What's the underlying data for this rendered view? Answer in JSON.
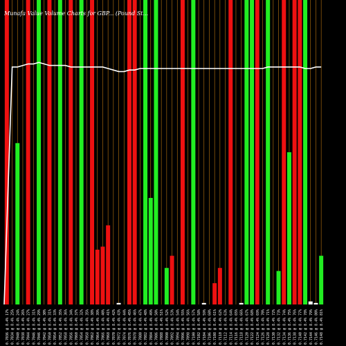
{
  "chart_data": {
    "type": "bar",
    "title": "Munafa Value Volume Charts for GBP... (Pound St...",
    "ylim": [
      0,
      1
    ],
    "colors": {
      "up": "#22ee22",
      "down": "#ee1111",
      "line": "#ffffff",
      "divider": "#c07a10",
      "background": "#000000"
    },
    "categories": [
      "0.7036 @ 8.4% 17%",
      "0.7034 @ 8.4% 25%",
      "0.7040 @ 8.4% 24%",
      "0.7038 @ 8.4% 26%",
      "0.7044 @ 8.4% 27%",
      "0.7046 @ 8.4% 31%",
      "0.7046 @ 8.4% 29%",
      "0.7042 @ 8.4% 30%",
      "0.7050 @ 8.4% 31%",
      "0.7054 @ 8.4% 33%",
      "0.7052 @ 8.4% 35%",
      "0.7058 @ 8.4% 36%",
      "0.7056 @ 8.4% 34%",
      "0.7060 @ 8.4% 37%",
      "0.7054 @ 8.4% 32%",
      "0.7058 @ 8.4% 35%",
      "0.7062 @ 8.4% 38%",
      "0.7064 @ 8.4% 39%",
      "0.7066 @ 8.4% 40%",
      "0.7068 @ 8.4% 41%",
      "0.7070 @ 8.4% 42%",
      "0.7072 @ 8.4% 43%",
      "0.7074 @ 8.4% 44%",
      "0.7076 @ 8.4% 45%",
      "0.7078 @ 8.4% 46%",
      "0.7080 @ 8.4% 47%",
      "0.7082 @ 8.4% 48%",
      "0.7084 @ 8.4% 49%",
      "0.7086 @ 8.4% 50%",
      "0.7088 @ 8.4% 51%",
      "0.7090 @ 8.4% 52%",
      "0.7092 @ 8.4% 53%",
      "0.7094 @ 8.4% 54%",
      "0.7096 @ 8.4% 55%",
      "0.7098 @ 8.4% 56%",
      "0.7100 @ 8.4% 57%",
      "0.7102 @ 8.4% 58%",
      "0.7104 @ 8.4% 59%",
      "0.7106 @ 8.4% 60%",
      "0.7108 @ 8.4% 61%",
      "0.7110 @ 8.4% 62%",
      "0.7112 @ 8.4% 63%",
      "0.7114 @ 8.4% 64%",
      "0.7116 @ 8.4% 65%",
      "0.7118 @ 8.4% 66%",
      "0.7120 @ 8.4% 67%",
      "0.7122 @ 8.4% 68%",
      "0.7124 @ 8.4% 69%",
      "0.7126 @ 8.4% 70%",
      "0.7128 @ 8.4% 71%",
      "0.7130 @ 8.4% 72%",
      "0.7132 @ 8.4% 73%",
      "0.7134 @ 8.4% 74%",
      "0.7136 @ 8.4% 75%",
      "0.7138 @ 8.4% 76%",
      "0.7140 @ 8.4% 77%",
      "0.7142 @ 8.4% 78%",
      "0.7144 @ 8.4% 79%",
      "0.7146 @ 8.4% 80%",
      "0.7148 @ 8.4% 81%"
    ],
    "bars": [
      {
        "v": 1.0,
        "c": "down"
      },
      {
        "v": 0.0,
        "c": "down"
      },
      {
        "v": 0.53,
        "c": "up"
      },
      {
        "v": 0.0,
        "c": "up"
      },
      {
        "v": 1.0,
        "c": "down"
      },
      {
        "v": 0.0,
        "c": "down"
      },
      {
        "v": 1.0,
        "c": "up"
      },
      {
        "v": 0.0,
        "c": "up"
      },
      {
        "v": 1.0,
        "c": "down"
      },
      {
        "v": 0.0,
        "c": "down"
      },
      {
        "v": 1.0,
        "c": "up"
      },
      {
        "v": 0.0,
        "c": "up"
      },
      {
        "v": 1.0,
        "c": "down"
      },
      {
        "v": 0.0,
        "c": "down"
      },
      {
        "v": 1.0,
        "c": "up"
      },
      {
        "v": 0.0,
        "c": "up"
      },
      {
        "v": 1.0,
        "c": "down"
      },
      {
        "v": 0.18,
        "c": "down"
      },
      {
        "v": 0.19,
        "c": "down"
      },
      {
        "v": 0.26,
        "c": "down"
      },
      {
        "v": 0.0,
        "c": "down"
      },
      {
        "v": 0.005,
        "c": "up"
      },
      {
        "v": 0.0,
        "c": "up"
      },
      {
        "v": 1.0,
        "c": "down"
      },
      {
        "v": 1.0,
        "c": "down"
      },
      {
        "v": 0.0,
        "c": "up"
      },
      {
        "v": 1.0,
        "c": "up"
      },
      {
        "v": 0.35,
        "c": "up"
      },
      {
        "v": 1.0,
        "c": "up"
      },
      {
        "v": 0.0,
        "c": "up"
      },
      {
        "v": 0.12,
        "c": "up"
      },
      {
        "v": 0.16,
        "c": "down"
      },
      {
        "v": 0.0,
        "c": "down"
      },
      {
        "v": 1.0,
        "c": "down"
      },
      {
        "v": 0.0,
        "c": "up"
      },
      {
        "v": 1.0,
        "c": "up"
      },
      {
        "v": 0.0,
        "c": "up"
      },
      {
        "v": 0.005,
        "c": "up"
      },
      {
        "v": 0.0,
        "c": "down"
      },
      {
        "v": 0.07,
        "c": "down"
      },
      {
        "v": 0.12,
        "c": "down"
      },
      {
        "v": 0.0,
        "c": "down"
      },
      {
        "v": 1.0,
        "c": "down"
      },
      {
        "v": 0.0,
        "c": "up"
      },
      {
        "v": 0.005,
        "c": "up"
      },
      {
        "v": 1.0,
        "c": "up"
      },
      {
        "v": 1.0,
        "c": "up"
      },
      {
        "v": 1.0,
        "c": "down"
      },
      {
        "v": 0.0,
        "c": "up"
      },
      {
        "v": 1.0,
        "c": "up"
      },
      {
        "v": 0.0,
        "c": "up"
      },
      {
        "v": 0.11,
        "c": "up"
      },
      {
        "v": 1.0,
        "c": "down"
      },
      {
        "v": 0.5,
        "c": "up"
      },
      {
        "v": 1.0,
        "c": "down"
      },
      {
        "v": 1.0,
        "c": "down"
      },
      {
        "v": 1.0,
        "c": "up"
      },
      {
        "v": 0.01,
        "c": "up"
      },
      {
        "v": 0.005,
        "c": "up"
      },
      {
        "v": 0.16,
        "c": "up"
      }
    ],
    "price_line": [
      0.0,
      0.78,
      0.78,
      0.785,
      0.79,
      0.79,
      0.795,
      0.79,
      0.785,
      0.785,
      0.785,
      0.785,
      0.78,
      0.78,
      0.78,
      0.78,
      0.78,
      0.78,
      0.78,
      0.775,
      0.77,
      0.765,
      0.765,
      0.77,
      0.77,
      0.775,
      0.775,
      0.775,
      0.775,
      0.775,
      0.775,
      0.775,
      0.775,
      0.775,
      0.775,
      0.775,
      0.775,
      0.775,
      0.775,
      0.775,
      0.775,
      0.775,
      0.775,
      0.775,
      0.775,
      0.775,
      0.775,
      0.775,
      0.775,
      0.78,
      0.78,
      0.78,
      0.78,
      0.78,
      0.78,
      0.78,
      0.775,
      0.775,
      0.78,
      0.78
    ]
  }
}
